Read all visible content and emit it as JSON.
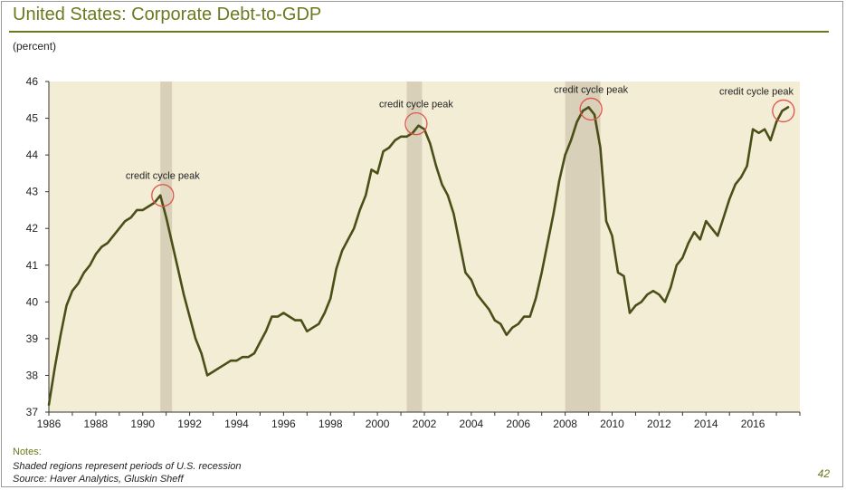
{
  "title": "United States: Corporate Debt-to-GDP",
  "unit_label": "(percent)",
  "notes_heading": "Notes:",
  "notes": [
    "Shaded regions represent periods of U.S. recession",
    "Source: Haver Analytics, Gluskin Sheff"
  ],
  "page_number": "42",
  "colors": {
    "plot_background": "#f4edd6",
    "recession_shade": "#d8d0b8",
    "line": "#4a4f17",
    "circle": "#e0534a",
    "title": "#6b7a1e"
  },
  "chart_data": {
    "type": "line",
    "title": "United States: Corporate Debt-to-GDP",
    "ylabel": "(percent)",
    "xlim": [
      1986,
      2018
    ],
    "ylim": [
      37,
      46
    ],
    "x_ticks": [
      1986,
      1988,
      1990,
      1992,
      1994,
      1996,
      1998,
      2000,
      2002,
      2004,
      2006,
      2008,
      2010,
      2012,
      2014,
      2016
    ],
    "y_ticks": [
      37,
      38,
      39,
      40,
      41,
      42,
      43,
      44,
      45,
      46
    ],
    "grid": false,
    "recessions": [
      [
        1990.75,
        1991.25
      ],
      [
        2001.25,
        2001.9
      ],
      [
        2008.0,
        2009.5
      ]
    ],
    "x": [
      1986.0,
      1986.25,
      1986.5,
      1986.75,
      1987.0,
      1987.25,
      1987.5,
      1987.75,
      1988.0,
      1988.25,
      1988.5,
      1988.75,
      1989.0,
      1989.25,
      1989.5,
      1989.75,
      1990.0,
      1990.25,
      1990.5,
      1990.75,
      1991.0,
      1991.25,
      1991.5,
      1991.75,
      1992.0,
      1992.25,
      1992.5,
      1992.75,
      1993.0,
      1993.25,
      1993.5,
      1993.75,
      1994.0,
      1994.25,
      1994.5,
      1994.75,
      1995.0,
      1995.25,
      1995.5,
      1995.75,
      1996.0,
      1996.25,
      1996.5,
      1996.75,
      1997.0,
      1997.25,
      1997.5,
      1997.75,
      1998.0,
      1998.25,
      1998.5,
      1998.75,
      1999.0,
      1999.25,
      1999.5,
      1999.75,
      2000.0,
      2000.25,
      2000.5,
      2000.75,
      2001.0,
      2001.25,
      2001.5,
      2001.75,
      2002.0,
      2002.25,
      2002.5,
      2002.75,
      2003.0,
      2003.25,
      2003.5,
      2003.75,
      2004.0,
      2004.25,
      2004.5,
      2004.75,
      2005.0,
      2005.25,
      2005.5,
      2005.75,
      2006.0,
      2006.25,
      2006.5,
      2006.75,
      2007.0,
      2007.25,
      2007.5,
      2007.75,
      2008.0,
      2008.25,
      2008.5,
      2008.75,
      2009.0,
      2009.25,
      2009.5,
      2009.75,
      2010.0,
      2010.25,
      2010.5,
      2010.75,
      2011.0,
      2011.25,
      2011.5,
      2011.75,
      2012.0,
      2012.25,
      2012.5,
      2012.75,
      2013.0,
      2013.25,
      2013.5,
      2013.75,
      2014.0,
      2014.25,
      2014.5,
      2014.75,
      2015.0,
      2015.25,
      2015.5,
      2015.75,
      2016.0,
      2016.25,
      2016.5,
      2016.75,
      2017.0,
      2017.25,
      2017.5
    ],
    "series": [
      {
        "values": [
          37.2,
          38.2,
          39.1,
          39.9,
          40.3,
          40.5,
          40.8,
          41.0,
          41.3,
          41.5,
          41.6,
          41.8,
          42.0,
          42.2,
          42.3,
          42.5,
          42.5,
          42.6,
          42.7,
          42.9,
          42.3,
          41.6,
          40.9,
          40.2,
          39.6,
          39.0,
          38.6,
          38.0,
          38.1,
          38.2,
          38.3,
          38.4,
          38.4,
          38.5,
          38.5,
          38.6,
          38.9,
          39.2,
          39.6,
          39.6,
          39.7,
          39.6,
          39.5,
          39.5,
          39.2,
          39.3,
          39.4,
          39.7,
          40.1,
          40.9,
          41.4,
          41.7,
          42.0,
          42.5,
          42.9,
          43.6,
          43.5,
          44.1,
          44.2,
          44.4,
          44.5,
          44.5,
          44.6,
          44.8,
          44.7,
          44.3,
          43.7,
          43.2,
          42.9,
          42.4,
          41.6,
          40.8,
          40.6,
          40.2,
          40.0,
          39.8,
          39.5,
          39.4,
          39.1,
          39.3,
          39.4,
          39.6,
          39.6,
          40.1,
          40.8,
          41.6,
          42.4,
          43.3,
          44.0,
          44.4,
          44.9,
          45.2,
          45.3,
          45.1,
          44.2,
          42.2,
          41.8,
          40.8,
          40.7,
          39.7,
          39.9,
          40.0,
          40.2,
          40.3,
          40.2,
          40.0,
          40.4,
          41.0,
          41.2,
          41.6,
          41.9,
          41.7,
          42.2,
          42.0,
          41.8,
          42.3,
          42.8,
          43.2,
          43.4,
          43.7,
          44.7,
          44.6,
          44.7,
          44.4,
          44.9,
          45.2,
          45.3
        ]
      }
    ],
    "annotations": [
      {
        "text": "credit cycle peak",
        "x": 1990.85,
        "y": 42.9
      },
      {
        "text": "credit cycle peak",
        "x": 2001.65,
        "y": 44.85
      },
      {
        "text": "credit cycle peak",
        "x": 2009.1,
        "y": 45.25
      },
      {
        "text": "credit cycle peak",
        "x": 2017.3,
        "y": 45.2
      }
    ]
  }
}
